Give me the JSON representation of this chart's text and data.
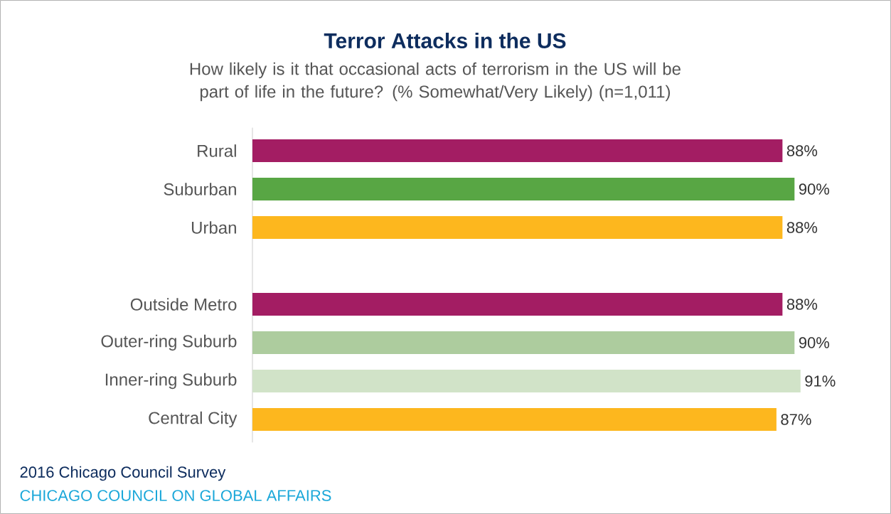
{
  "chart_data": {
    "type": "bar",
    "orientation": "horizontal",
    "title": "Terror Attacks in the US",
    "subtitle": "How likely is it that occasional acts of terrorism in the US will be part of life in the future? (% Somewhat/Very Likely) (n=1,011)",
    "categories": [
      "Rural",
      "Suburban",
      "Urban",
      null,
      "Outside Metro",
      "Outer-ring Suburb",
      "Inner-ring Suburb",
      "Central City"
    ],
    "values": [
      88,
      90,
      88,
      null,
      88,
      90,
      91,
      87
    ],
    "colors": [
      "#a31d63",
      "#58a644",
      "#fdb71e",
      "#ffffff",
      "#a31d63",
      "#adcc9e",
      "#d1e3c8",
      "#fdb71e"
    ],
    "value_labels": [
      "88%",
      "90%",
      "88%",
      null,
      "88%",
      "90%",
      "91%",
      "87%"
    ],
    "tick_labels": "y",
    "annotations": [
      "2016 Chicago Council Survey",
      "CHICAGO COUNCIL ON GLOBAL AFFAIRS"
    ]
  }
}
